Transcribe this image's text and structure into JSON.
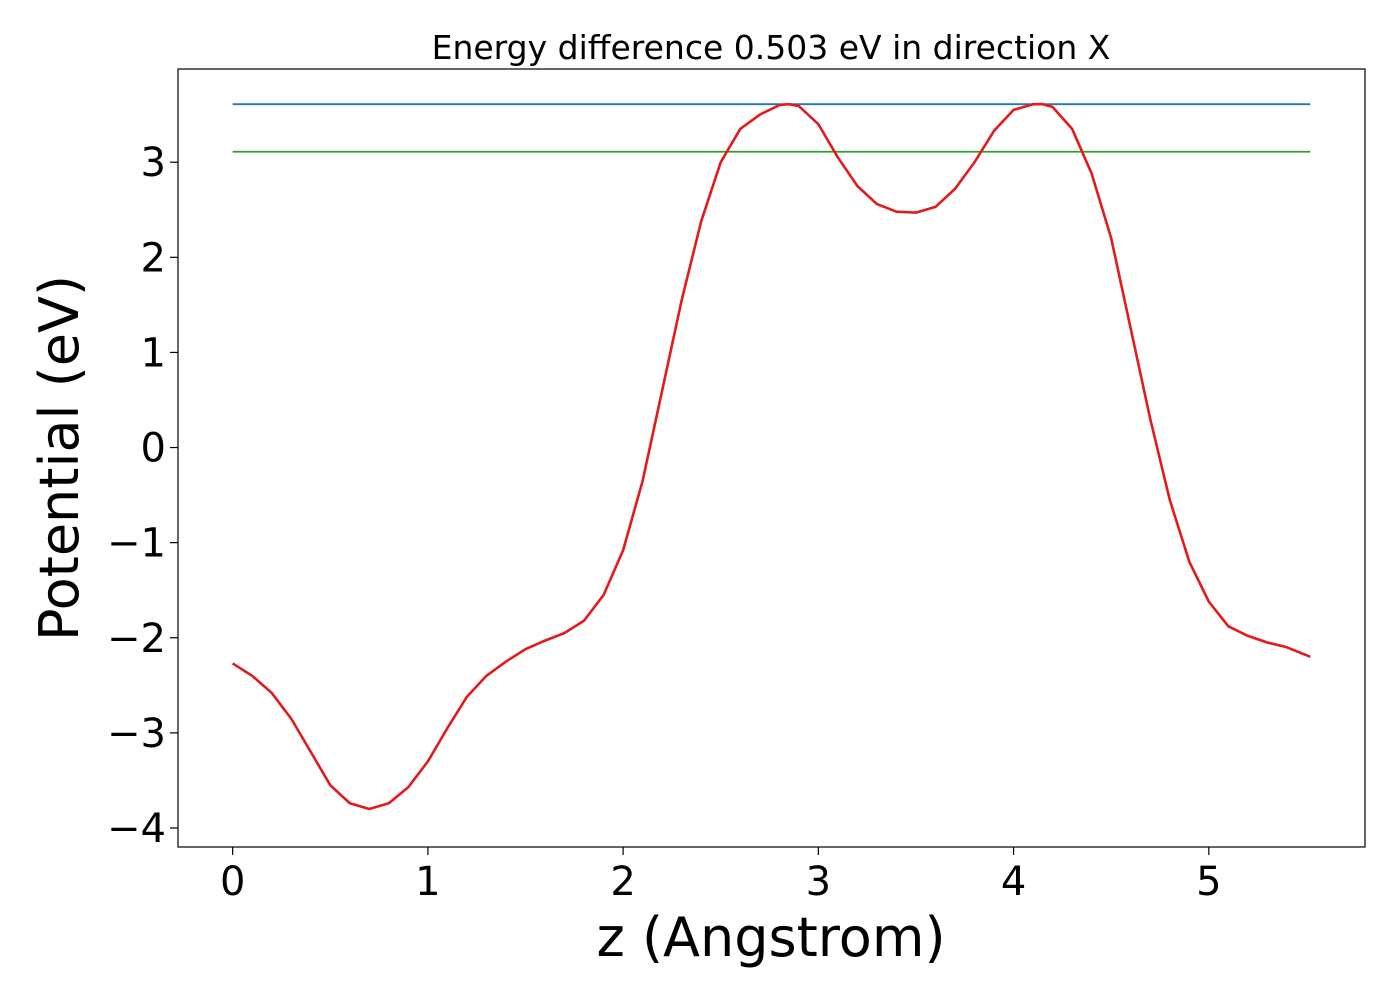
{
  "chart_data": {
    "type": "line",
    "title": "Energy difference 0.503 eV in direction X",
    "xlabel": "z (Angstrom)",
    "ylabel": "Potential (eV)",
    "xlim": [
      -0.28,
      5.8
    ],
    "ylim": [
      -4.2,
      3.98
    ],
    "xticks": [
      0,
      1,
      2,
      3,
      4,
      5
    ],
    "xtick_labels": [
      "0",
      "1",
      "2",
      "3",
      "4",
      "5"
    ],
    "yticks": [
      -4,
      -3,
      -2,
      -1,
      0,
      1,
      2,
      3
    ],
    "ytick_labels": [
      "−4",
      "−3",
      "−2",
      "−1",
      "0",
      "1",
      "2",
      "3"
    ],
    "grid": false,
    "series": [
      {
        "color": "#1f77b4",
        "x": [
          0.0,
          5.52
        ],
        "y": [
          3.61,
          3.61
        ]
      },
      {
        "color": "#2ca02c",
        "x": [
          0.0,
          5.52
        ],
        "y": [
          3.11,
          3.11
        ]
      },
      {
        "color": "#e31a1c",
        "x": [
          0.0,
          0.1,
          0.2,
          0.3,
          0.4,
          0.5,
          0.6,
          0.7,
          0.8,
          0.9,
          1.0,
          1.1,
          1.2,
          1.3,
          1.4,
          1.5,
          1.6,
          1.7,
          1.8,
          1.9,
          2.0,
          2.1,
          2.2,
          2.3,
          2.4,
          2.5,
          2.6,
          2.7,
          2.8,
          2.85,
          2.9,
          3.0,
          3.1,
          3.2,
          3.3,
          3.4,
          3.5,
          3.6,
          3.7,
          3.8,
          3.9,
          4.0,
          4.1,
          4.15,
          4.2,
          4.3,
          4.4,
          4.5,
          4.6,
          4.7,
          4.8,
          4.9,
          5.0,
          5.1,
          5.2,
          5.3,
          5.4,
          5.52
        ],
        "y": [
          -2.27,
          -2.4,
          -2.58,
          -2.85,
          -3.2,
          -3.55,
          -3.74,
          -3.8,
          -3.74,
          -3.57,
          -3.3,
          -2.95,
          -2.62,
          -2.4,
          -2.25,
          -2.12,
          -2.03,
          -1.95,
          -1.82,
          -1.55,
          -1.08,
          -0.35,
          0.6,
          1.55,
          2.38,
          3.0,
          3.35,
          3.5,
          3.6,
          3.61,
          3.59,
          3.4,
          3.05,
          2.75,
          2.56,
          2.48,
          2.47,
          2.53,
          2.72,
          3.0,
          3.33,
          3.55,
          3.61,
          3.61,
          3.58,
          3.35,
          2.88,
          2.2,
          1.25,
          0.3,
          -0.55,
          -1.2,
          -1.62,
          -1.88,
          -1.98,
          -2.05,
          -2.1,
          -2.2
        ]
      }
    ]
  }
}
